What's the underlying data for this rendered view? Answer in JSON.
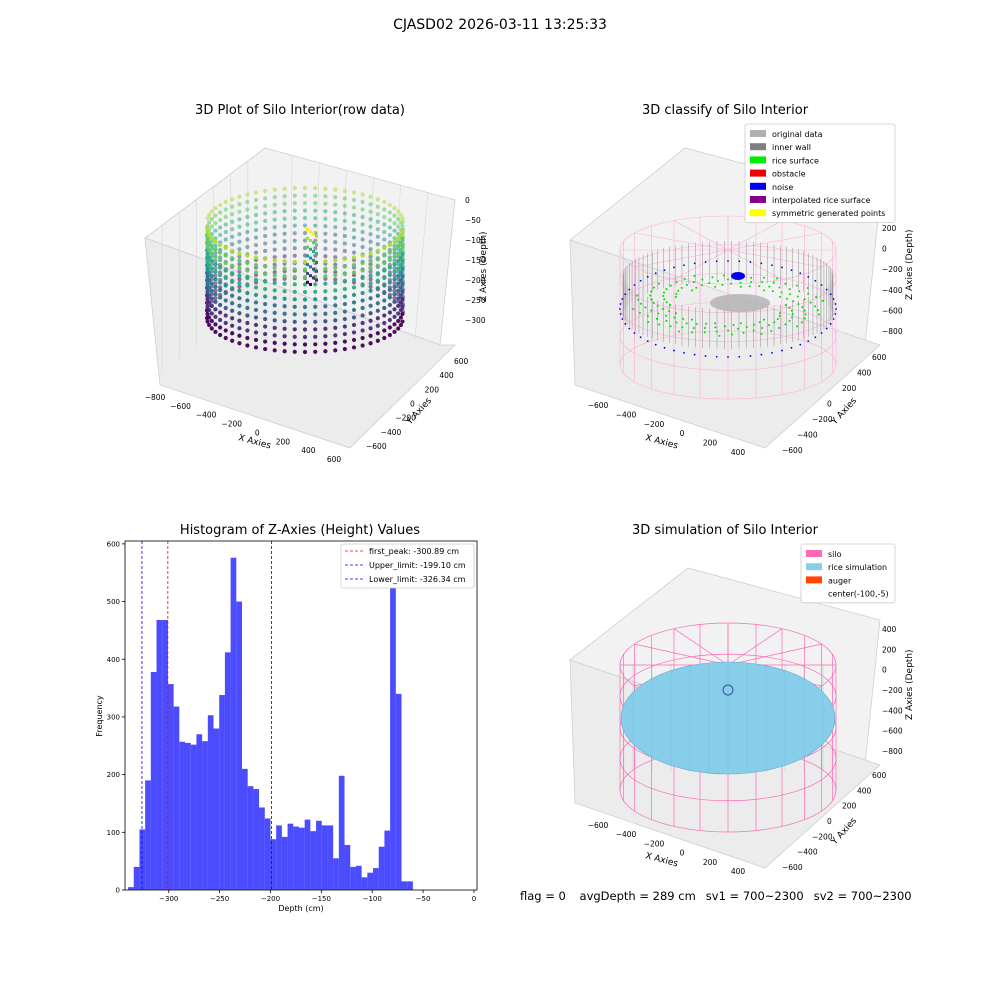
{
  "figure": {
    "title": "CJASD02 2026-03-11 13:25:33"
  },
  "plot3d_raw": {
    "title": "3D Plot of Silo Interior(row data)",
    "xlabel": "X Axies",
    "ylabel": "Y Axies",
    "zlabel": "Z Axies (Depth)",
    "x_ticks": [
      "−800",
      "−600",
      "−400",
      "−200",
      "0",
      "200",
      "400",
      "600"
    ],
    "y_ticks": [
      "−600",
      "−400",
      "−200",
      "0",
      "200",
      "400",
      "600"
    ],
    "z_ticks": [
      "0",
      "−50",
      "−100",
      "−150",
      "−200",
      "−250",
      "−300"
    ],
    "colormap": "viridis"
  },
  "plot3d_classify": {
    "title": "3D classify of Silo Interior",
    "xlabel": "X Axies",
    "ylabel": "Y Axies",
    "zlabel": "Z Axies (Depth)",
    "x_ticks": [
      "−600",
      "−400",
      "−200",
      "0",
      "200",
      "400"
    ],
    "y_ticks": [
      "−600",
      "−400",
      "−200",
      "0",
      "200",
      "400",
      "600"
    ],
    "z_ticks": [
      "200",
      "0",
      "−200",
      "−400",
      "−600",
      "−800"
    ],
    "legend": [
      {
        "label": "original data",
        "color": "#b0b0b0"
      },
      {
        "label": "inner wall",
        "color": "#808080"
      },
      {
        "label": "rice surface",
        "color": "#00ee00"
      },
      {
        "label": "obstacle",
        "color": "#ee0000"
      },
      {
        "label": "noise",
        "color": "#0000ee"
      },
      {
        "label": "interpolated rice surface",
        "color": "#880088"
      },
      {
        "label": "symmetric generated points",
        "color": "#ffff00"
      }
    ]
  },
  "plot3d_sim": {
    "title": "3D simulation of Silo Interior",
    "xlabel": "X Axies",
    "ylabel": "Y Axies",
    "zlabel": "Z Axies (Depth)",
    "x_ticks": [
      "−600",
      "−400",
      "−200",
      "0",
      "200",
      "400"
    ],
    "y_ticks": [
      "−600",
      "−400",
      "−200",
      "0",
      "200",
      "400",
      "600"
    ],
    "z_ticks": [
      "400",
      "200",
      "0",
      "−200",
      "−400",
      "−600",
      "−800"
    ],
    "legend": [
      {
        "label": "silo",
        "color": "#ff69b4"
      },
      {
        "label": "rice simulation",
        "color": "#87ceeb"
      },
      {
        "label": "auger",
        "color": "#ff4500"
      },
      {
        "label": "center(-100,-5)",
        "color": ""
      }
    ]
  },
  "status": {
    "flag": "flag = 0",
    "avg_depth": "avgDepth = 289 cm",
    "sv1": "sv1 = 700~2300",
    "sv2": "sv2 = 700~2300"
  },
  "chart_data": {
    "type": "bar",
    "title": "Histogram of Z-Axies (Height) Values",
    "xlabel": "Depth (cm)",
    "ylabel": "Frequency",
    "xlim": [
      -343,
      3
    ],
    "ylim": [
      0,
      605
    ],
    "x_ticks": [
      -300,
      -250,
      -200,
      -150,
      -100,
      -50,
      0
    ],
    "y_ticks": [
      0,
      100,
      200,
      300,
      400,
      500,
      600
    ],
    "bar_color": "#0000ff",
    "bin_start": -340,
    "bin_width": 5.6,
    "counts": [
      5,
      40,
      105,
      190,
      378,
      468,
      468,
      357,
      318,
      257,
      255,
      252,
      270,
      258,
      303,
      280,
      338,
      412,
      576,
      500,
      210,
      180,
      175,
      143,
      124,
      88,
      112,
      92,
      115,
      110,
      108,
      122,
      102,
      120,
      112,
      112,
      55,
      198,
      78,
      40,
      42,
      22,
      30,
      38,
      75,
      103,
      560,
      340,
      15,
      15
    ],
    "vlines": [
      {
        "label": "first_peak: -300.89 cm",
        "x": -300.89,
        "color": "#ff0000"
      },
      {
        "label": "Upper_limit: -199.10 cm",
        "x": -199.1,
        "color": "#0000ff"
      },
      {
        "label": "Lower_limit: -326.34 cm",
        "x": -326.34,
        "color": "#0000ff"
      }
    ]
  }
}
